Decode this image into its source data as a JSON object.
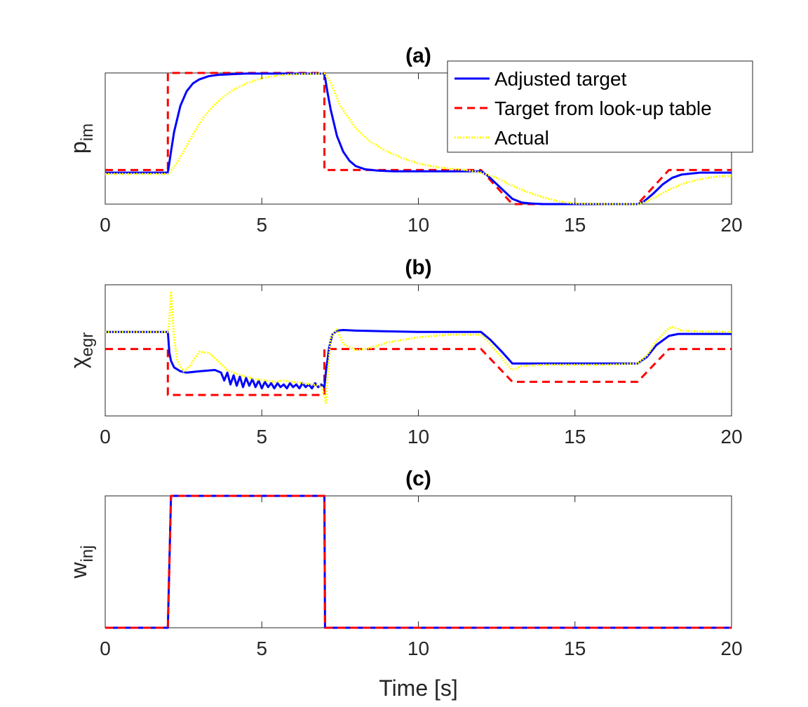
{
  "chart_data": [
    {
      "type": "line",
      "title": "(a)",
      "ylabel": {
        "main": "p",
        "sub": "im"
      },
      "xlabel": "",
      "xlim": [
        0,
        20
      ],
      "ylim": [
        0,
        1
      ],
      "xticks": [
        "0",
        "5",
        "10",
        "15",
        "20"
      ],
      "yticks": [],
      "legend": {
        "position": "top-right",
        "entries": [
          "Adjusted target",
          "Target from look-up table",
          "Actual"
        ]
      },
      "series": [
        {
          "name": "Adjusted target",
          "color": "#0000ff",
          "style": "solid",
          "x": [
            0,
            2,
            2.1,
            2.2,
            2.4,
            2.6,
            2.8,
            3.0,
            3.3,
            3.6,
            4.0,
            4.5,
            5,
            6,
            7,
            7.1,
            7.2,
            7.4,
            7.6,
            7.8,
            8.0,
            8.3,
            8.7,
            9.2,
            10,
            11,
            12,
            12.2,
            12.6,
            13.0,
            13.3,
            13.6,
            14,
            15,
            16,
            17,
            17.2,
            17.5,
            17.8,
            18.1,
            18.4,
            19,
            20
          ],
          "y": [
            0.24,
            0.24,
            0.4,
            0.55,
            0.75,
            0.86,
            0.92,
            0.95,
            0.975,
            0.985,
            0.99,
            0.995,
            0.995,
            0.995,
            0.995,
            0.85,
            0.72,
            0.52,
            0.4,
            0.33,
            0.29,
            0.265,
            0.255,
            0.25,
            0.25,
            0.25,
            0.25,
            0.22,
            0.13,
            0.04,
            0.012,
            0.005,
            0.0,
            0.0,
            0.0,
            0.0,
            0.02,
            0.08,
            0.15,
            0.2,
            0.225,
            0.24,
            0.24
          ]
        },
        {
          "name": "Target from look-up table",
          "color": "#ff0000",
          "style": "dashed",
          "x": [
            0,
            2,
            2,
            7,
            7,
            12,
            13,
            17,
            18,
            20
          ],
          "y": [
            0.26,
            0.26,
            1.0,
            1.0,
            0.26,
            0.26,
            0.0,
            0.0,
            0.26,
            0.26
          ]
        },
        {
          "name": "Actual",
          "color": "#ffff00",
          "style": "dotted",
          "x": [
            0,
            2,
            2.2,
            2.5,
            2.8,
            3.1,
            3.5,
            4.0,
            4.5,
            5.0,
            5.5,
            6,
            7,
            7.2,
            7.5,
            8.0,
            8.5,
            9.0,
            9.5,
            10,
            10.5,
            11,
            11.5,
            12,
            12.5,
            13.0,
            13.5,
            14,
            14.5,
            15,
            16,
            17,
            17.3,
            17.7,
            18.0,
            18.5,
            19,
            19.5,
            20
          ],
          "y": [
            0.23,
            0.23,
            0.28,
            0.4,
            0.53,
            0.65,
            0.76,
            0.86,
            0.92,
            0.96,
            0.98,
            0.99,
            0.995,
            0.93,
            0.75,
            0.58,
            0.47,
            0.4,
            0.35,
            0.31,
            0.285,
            0.27,
            0.26,
            0.24,
            0.2,
            0.14,
            0.09,
            0.05,
            0.02,
            0.005,
            0.0,
            0.0,
            0.02,
            0.07,
            0.11,
            0.16,
            0.19,
            0.21,
            0.215
          ]
        }
      ]
    },
    {
      "type": "line",
      "title": "(b)",
      "ylabel": {
        "main": "χ",
        "sub": "egr"
      },
      "xlabel": "",
      "xlim": [
        0,
        20
      ],
      "ylim": [
        0,
        1
      ],
      "xticks": [
        "0",
        "5",
        "10",
        "15",
        "20"
      ],
      "yticks": [],
      "series": [
        {
          "name": "Adjusted target",
          "color": "#0000ff",
          "style": "solid",
          "x": [
            0,
            2,
            2.05,
            2.1,
            2.2,
            2.4,
            2.6,
            3.0,
            3.5,
            3.7,
            3.8,
            3.9,
            4.0,
            4.1,
            4.2,
            4.3,
            4.4,
            4.5,
            4.6,
            4.7,
            4.8,
            4.9,
            5.0,
            5.1,
            5.2,
            5.3,
            5.4,
            5.5,
            5.6,
            5.7,
            5.8,
            5.9,
            6.0,
            6.1,
            6.2,
            6.3,
            6.4,
            6.5,
            6.6,
            6.7,
            6.8,
            6.9,
            7.0,
            7.05,
            7.15,
            7.25,
            7.4,
            7.6,
            8.0,
            9.0,
            10,
            11,
            12,
            12.3,
            12.7,
            13,
            14,
            15,
            16,
            17,
            17.3,
            17.6,
            18.0,
            18.3,
            19,
            20
          ],
          "y": [
            0.64,
            0.64,
            0.48,
            0.42,
            0.37,
            0.34,
            0.33,
            0.34,
            0.35,
            0.33,
            0.27,
            0.33,
            0.24,
            0.31,
            0.23,
            0.3,
            0.22,
            0.29,
            0.23,
            0.28,
            0.22,
            0.27,
            0.21,
            0.26,
            0.22,
            0.25,
            0.21,
            0.25,
            0.22,
            0.24,
            0.21,
            0.25,
            0.22,
            0.24,
            0.21,
            0.25,
            0.22,
            0.24,
            0.21,
            0.25,
            0.22,
            0.24,
            0.22,
            0.34,
            0.52,
            0.62,
            0.65,
            0.655,
            0.65,
            0.645,
            0.64,
            0.64,
            0.64,
            0.58,
            0.48,
            0.4,
            0.4,
            0.4,
            0.4,
            0.4,
            0.45,
            0.54,
            0.61,
            0.625,
            0.625,
            0.625
          ]
        },
        {
          "name": "Target from look-up table",
          "color": "#ff0000",
          "style": "dashed",
          "x": [
            0,
            2,
            2,
            7,
            7,
            12,
            13,
            17,
            18,
            20
          ],
          "y": [
            0.51,
            0.51,
            0.16,
            0.16,
            0.51,
            0.51,
            0.26,
            0.26,
            0.51,
            0.51
          ]
        },
        {
          "name": "Actual",
          "color": "#ffff00",
          "style": "dotted",
          "x": [
            0,
            2,
            2.05,
            2.1,
            2.15,
            2.2,
            2.3,
            2.5,
            2.7,
            3.0,
            3.3,
            3.6,
            3.9,
            4.2,
            4.5,
            4.8,
            5.1,
            5.4,
            5.7,
            6.0,
            6.3,
            6.6,
            6.9,
            7.0,
            7.05,
            7.1,
            7.2,
            7.4,
            7.6,
            8.0,
            8.5,
            9.0,
            10,
            11,
            12,
            12.3,
            12.7,
            13.0,
            13.3,
            14,
            15,
            16,
            17,
            17.3,
            17.6,
            17.9,
            18.1,
            18.4,
            19,
            20
          ],
          "y": [
            0.64,
            0.64,
            0.72,
            0.95,
            0.78,
            0.6,
            0.42,
            0.34,
            0.38,
            0.49,
            0.48,
            0.42,
            0.35,
            0.32,
            0.3,
            0.28,
            0.27,
            0.26,
            0.27,
            0.26,
            0.25,
            0.24,
            0.23,
            0.15,
            0.1,
            0.3,
            0.6,
            0.66,
            0.55,
            0.5,
            0.52,
            0.56,
            0.6,
            0.62,
            0.62,
            0.55,
            0.43,
            0.35,
            0.38,
            0.39,
            0.39,
            0.39,
            0.4,
            0.46,
            0.57,
            0.65,
            0.68,
            0.65,
            0.645,
            0.64
          ]
        }
      ]
    },
    {
      "type": "line",
      "title": "(c)",
      "ylabel": {
        "main": "w",
        "sub": "inj"
      },
      "xlabel": "Time [s]",
      "xlim": [
        0,
        20
      ],
      "ylim": [
        0,
        1
      ],
      "xticks": [
        "0",
        "5",
        "10",
        "15",
        "20"
      ],
      "yticks": [],
      "series": [
        {
          "name": "Adjusted target",
          "color": "#0000ff",
          "style": "solid",
          "x": [
            0,
            2,
            2.1,
            7,
            7.02,
            20
          ],
          "y": [
            0,
            0,
            1,
            1,
            0,
            0
          ]
        },
        {
          "name": "Target from look-up table",
          "color": "#ff0000",
          "style": "dashed",
          "x": [
            0,
            2,
            2.1,
            7,
            7.02,
            20
          ],
          "y": [
            0,
            0,
            1,
            1,
            0,
            0
          ]
        }
      ]
    }
  ]
}
